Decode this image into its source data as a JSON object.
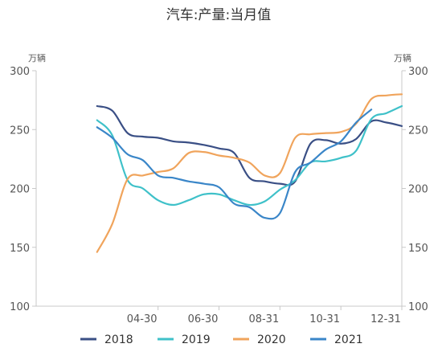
{
  "chart_data": {
    "type": "line",
    "title": "汽车:产量:当月值",
    "left_unit": "万辆",
    "right_unit": "万辆",
    "ylim": [
      100,
      300
    ],
    "yticks": [
      "100",
      "150",
      "200",
      "250",
      "300"
    ],
    "x_range": [
      0,
      12
    ],
    "xtick_labels": [
      {
        "label": "04-30",
        "x": 4
      },
      {
        "label": "06-30",
        "x": 6
      },
      {
        "label": "08-31",
        "x": 8
      },
      {
        "label": "10-31",
        "x": 10
      },
      {
        "label": "12-31",
        "x": 12
      }
    ],
    "grid": false,
    "legend_position": "bottom",
    "series": [
      {
        "name": "2018",
        "color": "#3a4f85",
        "x": [
          2,
          2.5,
          3,
          3.5,
          4,
          4.5,
          5,
          5.5,
          6,
          6.5,
          7,
          7.5,
          8,
          8.5,
          9,
          9.5,
          10,
          10.5,
          11,
          11.5,
          12
        ],
        "values": [
          270,
          266,
          247,
          244,
          243,
          240,
          239,
          237,
          234,
          230,
          209,
          206,
          204,
          206,
          238,
          241,
          238,
          242,
          257,
          256,
          253
        ]
      },
      {
        "name": "2019",
        "color": "#3fc1c9",
        "x": [
          2,
          2.5,
          3,
          3.5,
          4,
          4.5,
          5,
          5.5,
          6,
          6.5,
          7,
          7.5,
          8,
          8.5,
          9,
          9.5,
          10,
          10.5,
          11,
          11.5,
          12
        ],
        "values": [
          258,
          245,
          207,
          200,
          190,
          186,
          190,
          195,
          195,
          190,
          186,
          189,
          199,
          207,
          222,
          223,
          226,
          232,
          259,
          264,
          270
        ]
      },
      {
        "name": "2020",
        "color": "#f0a45c",
        "x": [
          2,
          2.5,
          3,
          3.5,
          4,
          4.5,
          5,
          5.5,
          6,
          6.5,
          7,
          7.5,
          8,
          8.5,
          9,
          9.5,
          10,
          10.5,
          11,
          11.5,
          12
        ],
        "values": [
          146,
          170,
          208,
          211,
          214,
          217,
          230,
          231,
          228,
          226,
          222,
          211,
          213,
          243,
          246,
          247,
          248,
          255,
          276,
          279,
          280
        ]
      },
      {
        "name": "2021",
        "color": "#3a86c8",
        "x": [
          2,
          2.5,
          3,
          3.5,
          4,
          4.5,
          5,
          5.5,
          6,
          6.5,
          7,
          7.5,
          8,
          8.5,
          9,
          9.5,
          10,
          10.5,
          11
        ],
        "values": [
          252,
          243,
          229,
          224,
          211,
          209,
          206,
          204,
          201,
          187,
          184,
          175,
          179,
          214,
          222,
          233,
          240,
          256,
          267
        ]
      }
    ]
  }
}
